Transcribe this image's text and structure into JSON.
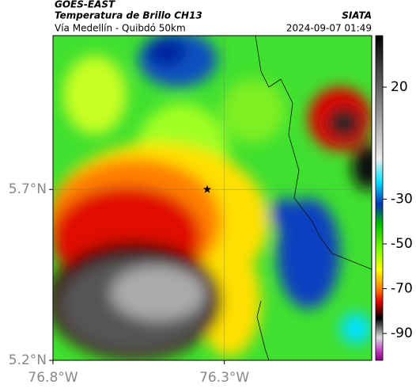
{
  "header": {
    "source": "GOES-EAST",
    "title": "Temperatura de Brillo CH13",
    "agency": "SIATA",
    "subtitle": "Vía Medellín - Quibdó 50km",
    "timestamp": "2024-09-07 01:49"
  },
  "map": {
    "xlim": [
      -76.8,
      -75.87
    ],
    "ylim": [
      5.2,
      6.15
    ],
    "xticks": [
      {
        "value": -76.8,
        "label": "76.8°W"
      },
      {
        "value": -76.3,
        "label": "76.3°W"
      }
    ],
    "yticks": [
      {
        "value": 5.2,
        "label": "5.2°N"
      },
      {
        "value": 5.7,
        "label": "5.7°N"
      }
    ],
    "grid": true,
    "marker": {
      "lon": -76.35,
      "lat": 5.7
    }
  },
  "colorbar": {
    "lim": [
      -102,
      43
    ],
    "ticks": [
      20,
      -30,
      -50,
      -70,
      -90
    ]
  }
}
